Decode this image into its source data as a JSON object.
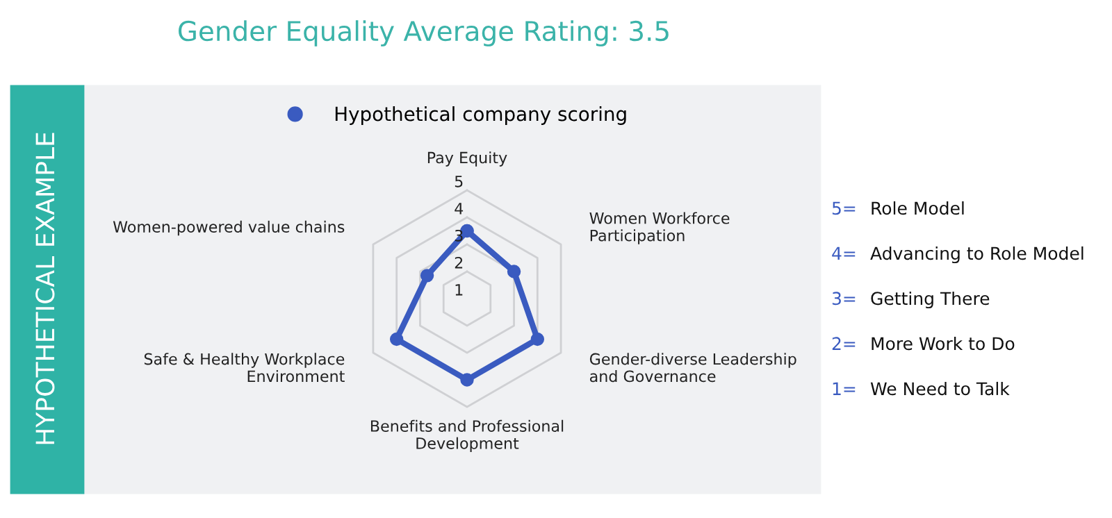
{
  "chart_data": {
    "type": "radar",
    "title": "Gender Equality Average Rating: 3.5",
    "categories": [
      "Pay Equity",
      "Women Workforce Participation",
      "Gender-diverse Leadership and Governance",
      "Benefits and Professional Development",
      "Safe & Healthy Workplace Environment",
      "Women-powered value chains"
    ],
    "series": [
      {
        "name": "Hypothetical company scoring",
        "color": "#3a5bc0",
        "values": [
          3.5,
          3,
          4,
          4,
          4,
          2.7
        ]
      }
    ],
    "ylim": [
      1,
      5
    ],
    "yticks": [
      1,
      2,
      3,
      4,
      5
    ],
    "grid": true,
    "legend": "top",
    "marker": "circle",
    "annotations": [
      "HYPOTHETICAL EXAMPLE",
      "5= Role Model",
      "4= Advancing to Role Model",
      "3= Getting There",
      "2= More Work to Do",
      "1= We Need to Talk"
    ]
  }
}
